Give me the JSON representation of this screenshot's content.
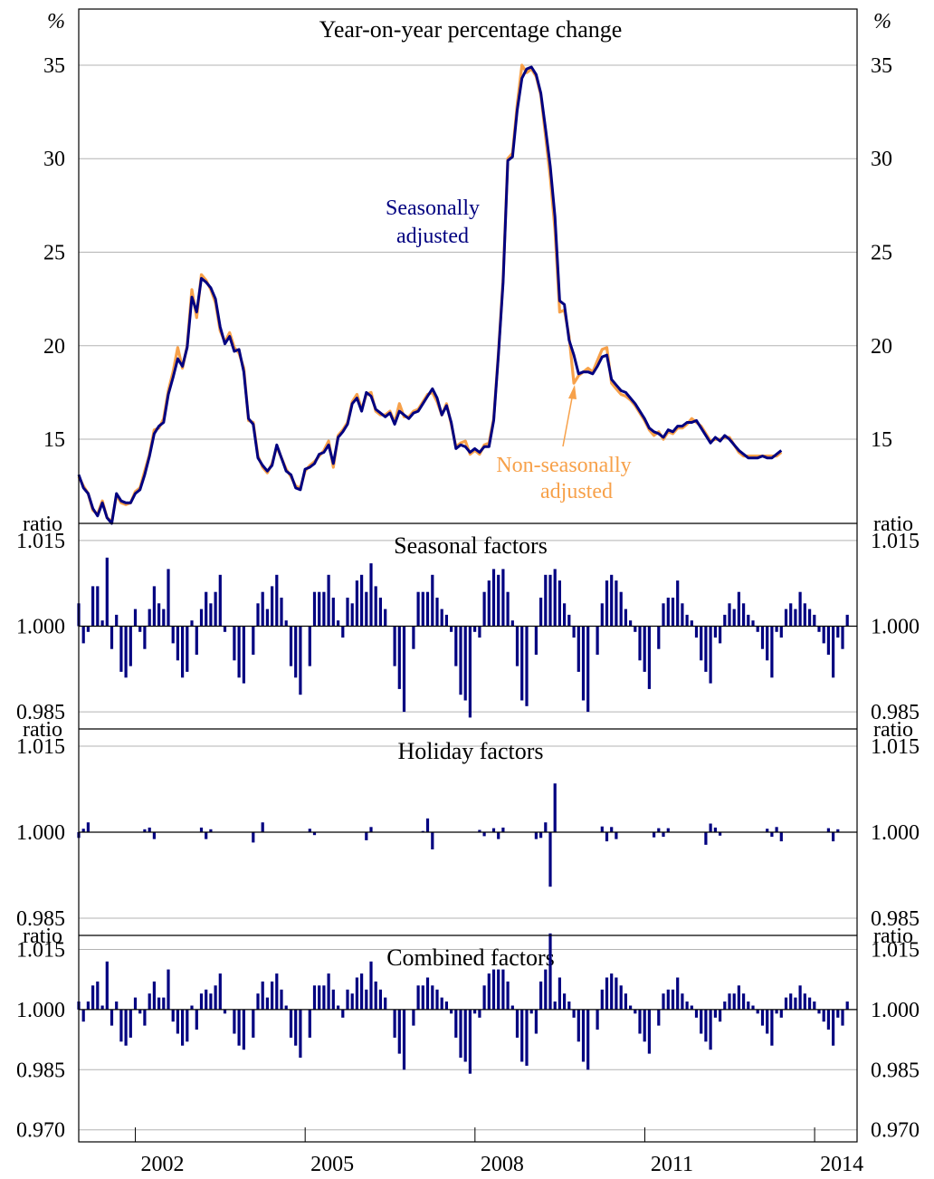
{
  "chart_data": [
    {
      "type": "line",
      "title": "Year-on-year percentage change",
      "ylabel": "%",
      "ylim": [
        10.5,
        38
      ],
      "yticks": [
        15,
        20,
        25,
        30,
        35
      ],
      "xlim": [
        2001.0,
        2014.75
      ],
      "xticks": [
        "2002",
        "2005",
        "2008",
        "2011",
        "2014"
      ],
      "grid": true,
      "series": [
        {
          "name": "Seasonally adjusted",
          "color": "#000080",
          "start": 2001.0,
          "step": 0.0833,
          "values": [
            13.1,
            12.4,
            12.1,
            11.3,
            10.9,
            11.6,
            10.8,
            10.5,
            12.1,
            11.7,
            11.6,
            11.6,
            12.1,
            12.3,
            13.1,
            14.1,
            15.3,
            15.7,
            15.9,
            17.4,
            18.3,
            19.3,
            18.9,
            19.9,
            22.6,
            21.8,
            23.6,
            23.4,
            23.1,
            22.5,
            21.0,
            20.1,
            20.5,
            19.7,
            19.8,
            18.6,
            16.1,
            15.8,
            14.0,
            13.6,
            13.3,
            13.6,
            14.7,
            14.0,
            13.3,
            13.1,
            12.4,
            12.3,
            13.4,
            13.5,
            13.7,
            14.2,
            14.3,
            14.7,
            13.7,
            15.1,
            15.4,
            15.8,
            16.9,
            17.2,
            16.5,
            17.5,
            17.3,
            16.6,
            16.4,
            16.2,
            16.4,
            15.8,
            16.5,
            16.3,
            16.1,
            16.4,
            16.5,
            16.9,
            17.3,
            17.7,
            17.2,
            16.3,
            16.8,
            15.9,
            14.5,
            14.7,
            14.6,
            14.3,
            14.5,
            14.3,
            14.6,
            14.6,
            16.0,
            19.5,
            23.4,
            29.9,
            30.1,
            32.6,
            34.3,
            34.8,
            34.9,
            34.5,
            33.5,
            31.6,
            29.6,
            26.9,
            22.4,
            22.2,
            20.3,
            19.5,
            18.5,
            18.6,
            18.6,
            18.5,
            18.9,
            19.4,
            19.5,
            18.2,
            17.9,
            17.6,
            17.5,
            17.2,
            16.9,
            16.5,
            16.1,
            15.6,
            15.4,
            15.3,
            15.1,
            15.5,
            15.4,
            15.7,
            15.7,
            15.9,
            15.9,
            16.0,
            15.6,
            15.2,
            14.8,
            15.1,
            14.9,
            15.2,
            15.0,
            14.7,
            14.4,
            14.2,
            14.0,
            14.0,
            14.0,
            14.1,
            14.0,
            14.0,
            14.2,
            14.4
          ]
        },
        {
          "name": "Non-seasonally adjusted",
          "color": "#F7A14A",
          "start": 2001.0,
          "step": 0.0833,
          "values": [
            13.0,
            12.5,
            12.1,
            11.2,
            11.0,
            11.7,
            10.8,
            10.6,
            12.0,
            11.6,
            11.5,
            11.6,
            12.2,
            12.4,
            13.3,
            14.2,
            15.5,
            15.6,
            16.1,
            17.6,
            18.6,
            19.9,
            18.8,
            20.0,
            23.0,
            21.5,
            23.8,
            23.5,
            23.0,
            22.3,
            20.8,
            20.2,
            20.7,
            19.9,
            19.6,
            18.8,
            16.0,
            15.9,
            14.1,
            13.5,
            13.2,
            13.7,
            14.6,
            14.0,
            13.4,
            13.0,
            12.5,
            12.4,
            13.3,
            13.6,
            13.8,
            14.1,
            14.4,
            14.9,
            13.5,
            15.2,
            15.5,
            15.9,
            17.0,
            17.4,
            16.6,
            17.4,
            17.5,
            16.5,
            16.3,
            16.3,
            16.5,
            15.9,
            16.9,
            16.2,
            16.2,
            16.5,
            16.6,
            17.0,
            17.4,
            17.5,
            17.0,
            16.3,
            16.9,
            15.8,
            14.6,
            14.8,
            14.9,
            14.2,
            14.4,
            14.2,
            14.7,
            14.8,
            16.1,
            19.6,
            23.6,
            30.0,
            30.3,
            32.9,
            35.0,
            34.6,
            34.8,
            34.4,
            33.4,
            31.2,
            29.0,
            26.2,
            21.8,
            21.9,
            20.5,
            18.0,
            18.4,
            18.6,
            18.8,
            18.6,
            19.2,
            19.8,
            19.9,
            18.0,
            17.7,
            17.4,
            17.3,
            17.1,
            16.8,
            16.4,
            16.0,
            15.5,
            15.2,
            15.4,
            15.0,
            15.4,
            15.3,
            15.6,
            15.6,
            15.8,
            16.1,
            15.9,
            15.7,
            15.3,
            14.9,
            15.0,
            15.0,
            15.1,
            15.1,
            14.7,
            14.3,
            14.1,
            14.1,
            14.1,
            14.1,
            14.1,
            14.1,
            14.1,
            14.1,
            14.3
          ]
        }
      ],
      "annotations": [
        {
          "text": [
            "Seasonally",
            "adjusted"
          ],
          "color": "#000080"
        },
        {
          "text": [
            "Non-seasonally",
            "adjusted"
          ],
          "color": "#F7A14A"
        }
      ]
    },
    {
      "type": "bar",
      "title": "Seasonal factors",
      "ylabel": "ratio",
      "ylim": [
        0.982,
        1.018
      ],
      "yticks": [
        "0.985",
        "1.000",
        "1.015"
      ],
      "bar_color": "#000080",
      "start": 2001.0,
      "step": 0.0833,
      "values": [
        1.004,
        0.997,
        0.999,
        1.007,
        1.007,
        1.001,
        1.012,
        0.996,
        1.002,
        0.992,
        0.991,
        0.993,
        1.003,
        0.999,
        0.996,
        1.003,
        1.007,
        1.004,
        1.003,
        1.01,
        0.997,
        0.994,
        0.991,
        0.992,
        1.001,
        0.995,
        1.003,
        1.006,
        1.004,
        1.006,
        1.009,
        0.999,
        1.0,
        0.994,
        0.991,
        0.99,
        1.0,
        0.995,
        1.004,
        1.006,
        1.003,
        1.007,
        1.009,
        1.005,
        1.001,
        0.993,
        0.991,
        0.988,
        1.0,
        0.993,
        1.006,
        1.006,
        1.006,
        1.009,
        1.005,
        1.001,
        0.998,
        1.005,
        1.004,
        1.008,
        1.009,
        1.006,
        1.011,
        1.007,
        1.005,
        1.003,
        1.0,
        0.993,
        0.989,
        0.985,
        1.0,
        0.996,
        1.006,
        1.006,
        1.006,
        1.009,
        1.005,
        1.003,
        1.002,
        0.999,
        0.993,
        0.988,
        0.987,
        0.984,
        0.999,
        0.998,
        1.006,
        1.008,
        1.01,
        1.009,
        1.01,
        1.006,
        1.001,
        0.993,
        0.987,
        0.986,
        1.0,
        0.995,
        1.005,
        1.009,
        1.009,
        1.01,
        1.008,
        1.004,
        1.002,
        0.998,
        0.992,
        0.987,
        0.985,
        1.0,
        0.995,
        1.004,
        1.008,
        1.009,
        1.008,
        1.006,
        1.003,
        1.001,
        0.999,
        0.994,
        0.992,
        0.989,
        1.0,
        0.996,
        1.004,
        1.005,
        1.005,
        1.008,
        1.004,
        1.002,
        1.001,
        0.998,
        0.994,
        0.992,
        0.99,
        0.998,
        0.997,
        1.002,
        1.004,
        1.003,
        1.006,
        1.004,
        1.002,
        1.001,
        0.999,
        0.996,
        0.994,
        0.991,
        0.999,
        0.998,
        1.003,
        1.004,
        1.003,
        1.006,
        1.004,
        1.003,
        1.002,
        0.999,
        0.997,
        0.995,
        0.991,
        0.998,
        0.996,
        1.002
      ]
    },
    {
      "type": "bar",
      "title": "Holiday factors",
      "ylabel": "ratio",
      "ylim": [
        0.982,
        1.018
      ],
      "yticks": [
        "0.985",
        "1.000",
        "1.015"
      ],
      "bar_color": "#000080",
      "start": 2001.0,
      "step": 0.0833,
      "values": [
        -0.001,
        0.0006,
        0.0017,
        0,
        0,
        0,
        0,
        0,
        0,
        0,
        0,
        0,
        0,
        0,
        0.0005,
        0.0008,
        -0.0012,
        0,
        0,
        0,
        0,
        0,
        0,
        0,
        0,
        0,
        0.0008,
        -0.0012,
        0.0005,
        0,
        0,
        0,
        0,
        0,
        0,
        0,
        0,
        -0.0018,
        0,
        0.0017,
        0,
        0,
        0,
        0,
        0,
        0,
        0,
        0,
        0,
        0.0006,
        -0.0005,
        0,
        0,
        0,
        0,
        0,
        0,
        0,
        0,
        0,
        0,
        -0.0014,
        0.0009,
        0,
        0,
        0,
        0,
        0,
        0,
        0,
        0,
        0,
        0,
        0.0002,
        0.0024,
        -0.003,
        0,
        0,
        0,
        0,
        0,
        0,
        0,
        0,
        0,
        0.0004,
        -0.0007,
        0,
        0.0007,
        -0.0012,
        0.0008,
        0,
        0,
        0,
        0,
        0,
        0,
        -0.0012,
        -0.001,
        0.0017,
        -0.0095,
        0.0085,
        0,
        0,
        0,
        0,
        0,
        0,
        0,
        0,
        0,
        0.001,
        -0.0016,
        0.0009,
        -0.0012,
        0,
        0,
        0,
        0,
        0,
        0,
        0,
        -0.0009,
        0.0007,
        -0.0008,
        0.0007,
        0,
        0,
        0,
        0,
        0,
        0,
        0,
        -0.0022,
        0.0015,
        0.0008,
        -0.0006,
        0,
        0,
        0,
        0,
        0,
        0,
        0,
        0,
        0,
        0.0006,
        -0.0008,
        0.0009,
        -0.0016,
        0,
        0,
        0,
        0,
        0,
        0,
        0,
        0,
        0,
        0.0007,
        -0.0016,
        0.0005,
        0,
        0,
        0,
        0
      ]
    },
    {
      "type": "bar",
      "title": "Combined factors",
      "ylabel": "ratio",
      "ylim": [
        0.967,
        1.0185
      ],
      "yticks": [
        "0.970",
        "0.985",
        "1.000",
        "1.015"
      ],
      "bar_color": "#000080",
      "start": 2001.0,
      "step": 0.0833,
      "values": [
        1.002,
        0.997,
        1.002,
        1.006,
        1.007,
        1.001,
        1.012,
        0.996,
        1.002,
        0.992,
        0.991,
        0.993,
        1.003,
        0.999,
        0.996,
        1.004,
        1.007,
        1.003,
        1.003,
        1.01,
        0.997,
        0.994,
        0.991,
        0.992,
        1.001,
        0.995,
        1.004,
        1.005,
        1.004,
        1.006,
        1.009,
        0.999,
        1.0,
        0.994,
        0.991,
        0.99,
        1.0,
        0.993,
        1.004,
        1.007,
        1.003,
        1.007,
        1.009,
        1.005,
        1.001,
        0.993,
        0.991,
        0.988,
        1.0,
        0.993,
        1.006,
        1.006,
        1.006,
        1.009,
        1.005,
        1.001,
        0.998,
        1.005,
        1.004,
        1.008,
        1.009,
        1.005,
        1.012,
        1.007,
        1.005,
        1.003,
        1.0,
        0.993,
        0.989,
        0.985,
        1.0,
        0.996,
        1.006,
        1.006,
        1.008,
        1.006,
        1.005,
        1.003,
        1.002,
        0.999,
        0.993,
        0.988,
        0.987,
        0.984,
        0.999,
        0.998,
        1.006,
        1.009,
        1.01,
        1.01,
        1.01,
        1.007,
        1.001,
        0.993,
        0.987,
        0.986,
        0.999,
        0.994,
        1.007,
        1.01,
        1.019,
        1.002,
        1.008,
        1.004,
        1.002,
        0.998,
        0.992,
        0.987,
        0.985,
        1.0,
        0.995,
        1.005,
        1.008,
        1.009,
        1.008,
        1.006,
        1.004,
        1.001,
        0.999,
        0.994,
        0.992,
        0.989,
        1.0,
        0.996,
        1.004,
        1.005,
        1.005,
        1.008,
        1.004,
        1.002,
        1.001,
        0.998,
        0.994,
        0.992,
        0.99,
        0.998,
        0.997,
        1.002,
        1.004,
        1.004,
        1.006,
        1.004,
        1.002,
        1.001,
        0.999,
        0.996,
        0.994,
        0.991,
        0.999,
        0.998,
        1.003,
        1.004,
        1.003,
        1.006,
        1.004,
        1.003,
        1.002,
        0.999,
        0.997,
        0.995,
        0.991,
        0.998,
        0.996,
        1.002
      ]
    }
  ]
}
